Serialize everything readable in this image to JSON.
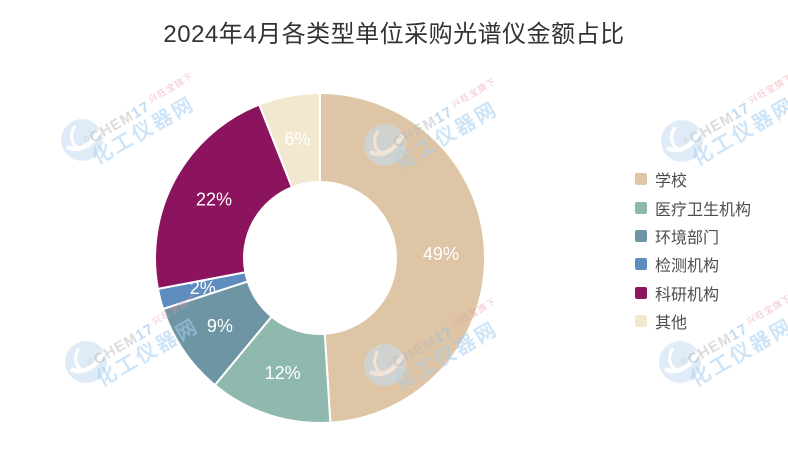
{
  "title": "2024年4月各类型单位采购光谱仪金额占比",
  "colors": {
    "background": "#ffffff",
    "title_text": "#333333",
    "legend_text": "#4d4d4d",
    "slice_label_text": "#ffffff",
    "slice_border": "#ffffff",
    "watermark_blue": "#bfdcf2",
    "watermark_gray": "#d2d2d2",
    "watermark_red": "#efb9c4"
  },
  "watermark": {
    "registered_mark": "®",
    "brand_en_prefix": "CHEM",
    "brand_en_suffix": "17",
    "tagline": "兴旺宝旗下",
    "brand_cn": "化工仪器网"
  },
  "chart_data": {
    "type": "pie",
    "subtype": "donut",
    "title": "2024年4月各类型单位采购光谱仪金额占比",
    "unit": "%",
    "start_angle_deg": 0,
    "direction": "clockwise",
    "legend_position": "right",
    "segments": [
      {
        "label": "学校",
        "value": 49,
        "color": "#DEC5A5"
      },
      {
        "label": "医疗卫生机构",
        "value": 12,
        "color": "#8FB9AF"
      },
      {
        "label": "环境部门",
        "value": 9,
        "color": "#6E95A4"
      },
      {
        "label": "检测机构",
        "value": 2,
        "color": "#5E8CBE"
      },
      {
        "label": "科研机构",
        "value": 22,
        "color": "#8C135E"
      },
      {
        "label": "其他",
        "value": 6,
        "color": "#F2E8D0"
      }
    ]
  }
}
